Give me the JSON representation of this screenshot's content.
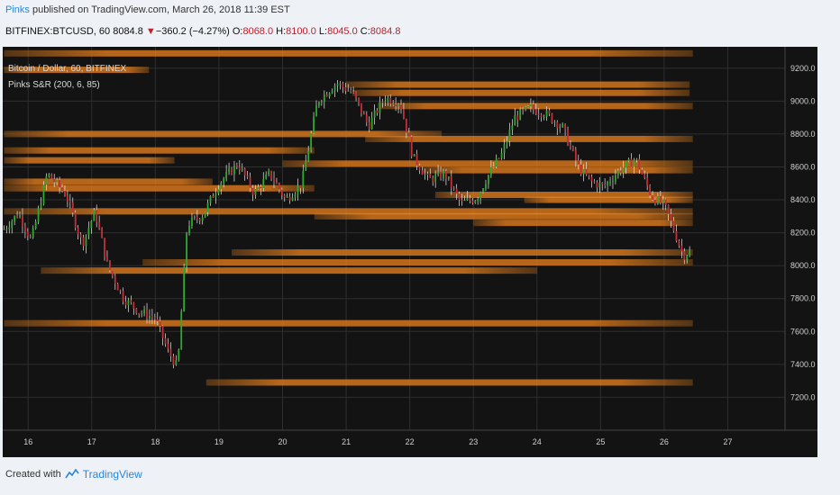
{
  "header": {
    "author": "Pinks",
    "published_text": " published on TradingView.com, March 26, 2018 11:39 EST"
  },
  "symbol_bar": {
    "symbol": "BITFINEX:BTCUSD, 60",
    "last": "8084.8",
    "change": "−360.2 (−4.27%)",
    "o_label": "O:",
    "o_value": "8068.0",
    "h_label": "H:",
    "h_value": "8100.0",
    "l_label": "L:",
    "l_value": "8045.0",
    "c_label": "C:",
    "c_value": "8084.8"
  },
  "footer": {
    "created_with": "Created with",
    "brand": "TradingView"
  },
  "colors": {
    "background": "#131313",
    "grid": "#2e2e2e",
    "sr_line": "#e8801c",
    "up": "#2faa2f",
    "down": "#c2303a",
    "wick": "#e8e8e8",
    "axis_text": "#d0d0d0"
  },
  "chart_data": {
    "type": "candlestick",
    "title": "Bitcoin / Dollar, 60, BITFINEX",
    "indicator": "Pinks S&R (200, 6, 85)",
    "x_ticks": [
      "16",
      "17",
      "18",
      "19",
      "20",
      "21",
      "22",
      "23",
      "24",
      "25",
      "26",
      "27"
    ],
    "y_ticks": [
      "9200.0",
      "9000.0",
      "8800.0",
      "8600.0",
      "8400.0",
      "8200.0",
      "8000.0",
      "7800.0",
      "7600.0",
      "7400.0",
      "7200.0"
    ],
    "ylim": [
      7000,
      9330
    ],
    "xlim": [
      15.6,
      27.9
    ],
    "price_path": [
      [
        15.62,
        8220
      ],
      [
        15.85,
        8320
      ],
      [
        16.05,
        8150
      ],
      [
        16.3,
        8560
      ],
      [
        16.6,
        8430
      ],
      [
        16.85,
        8130
      ],
      [
        17.05,
        8330
      ],
      [
        17.25,
        8000
      ],
      [
        17.5,
        7800
      ],
      [
        17.75,
        7720
      ],
      [
        18.0,
        7680
      ],
      [
        18.2,
        7480
      ],
      [
        18.35,
        7380
      ],
      [
        18.5,
        8250
      ],
      [
        18.75,
        8310
      ],
      [
        19.0,
        8500
      ],
      [
        19.3,
        8620
      ],
      [
        19.55,
        8440
      ],
      [
        19.8,
        8560
      ],
      [
        20.05,
        8400
      ],
      [
        20.3,
        8500
      ],
      [
        20.55,
        9000
      ],
      [
        20.85,
        9110
      ],
      [
        21.1,
        9050
      ],
      [
        21.35,
        8850
      ],
      [
        21.6,
        9020
      ],
      [
        21.85,
        8990
      ],
      [
        22.05,
        8660
      ],
      [
        22.3,
        8520
      ],
      [
        22.55,
        8560
      ],
      [
        22.8,
        8380
      ],
      [
        23.05,
        8410
      ],
      [
        23.25,
        8560
      ],
      [
        23.45,
        8680
      ],
      [
        23.65,
        8900
      ],
      [
        23.9,
        8960
      ],
      [
        24.15,
        8920
      ],
      [
        24.4,
        8840
      ],
      [
        24.65,
        8600
      ],
      [
        24.85,
        8510
      ],
      [
        25.05,
        8480
      ],
      [
        25.3,
        8580
      ],
      [
        25.55,
        8650
      ],
      [
        25.8,
        8420
      ],
      [
        26.0,
        8370
      ],
      [
        26.15,
        8220
      ],
      [
        26.3,
        8060
      ],
      [
        26.4,
        8085
      ]
    ],
    "sr_levels": [
      {
        "price": 9290,
        "x_start": 15.62,
        "x_end": 26.45
      },
      {
        "price": 9190,
        "x_start": 15.62,
        "x_end": 17.9
      },
      {
        "price": 9100,
        "x_start": 21.0,
        "x_end": 26.4
      },
      {
        "price": 9050,
        "x_start": 21.1,
        "x_end": 26.4
      },
      {
        "price": 8970,
        "x_start": 21.5,
        "x_end": 26.45
      },
      {
        "price": 8800,
        "x_start": 15.62,
        "x_end": 22.5
      },
      {
        "price": 8770,
        "x_start": 21.3,
        "x_end": 26.45
      },
      {
        "price": 8700,
        "x_start": 15.62,
        "x_end": 20.5
      },
      {
        "price": 8640,
        "x_start": 15.62,
        "x_end": 18.3
      },
      {
        "price": 8620,
        "x_start": 20.0,
        "x_end": 26.45
      },
      {
        "price": 8580,
        "x_start": 22.2,
        "x_end": 26.45
      },
      {
        "price": 8510,
        "x_start": 15.62,
        "x_end": 18.9
      },
      {
        "price": 8470,
        "x_start": 15.62,
        "x_end": 20.5
      },
      {
        "price": 8430,
        "x_start": 22.4,
        "x_end": 26.45
      },
      {
        "price": 8400,
        "x_start": 23.8,
        "x_end": 26.45
      },
      {
        "price": 8330,
        "x_start": 15.62,
        "x_end": 26.45
      },
      {
        "price": 8300,
        "x_start": 20.5,
        "x_end": 26.45
      },
      {
        "price": 8260,
        "x_start": 23.0,
        "x_end": 26.45
      },
      {
        "price": 8080,
        "x_start": 19.2,
        "x_end": 26.45
      },
      {
        "price": 8020,
        "x_start": 17.8,
        "x_end": 26.45
      },
      {
        "price": 7970,
        "x_start": 16.2,
        "x_end": 24.0
      },
      {
        "price": 7650,
        "x_start": 15.62,
        "x_end": 26.45
      },
      {
        "price": 7290,
        "x_start": 18.8,
        "x_end": 26.45
      }
    ]
  }
}
